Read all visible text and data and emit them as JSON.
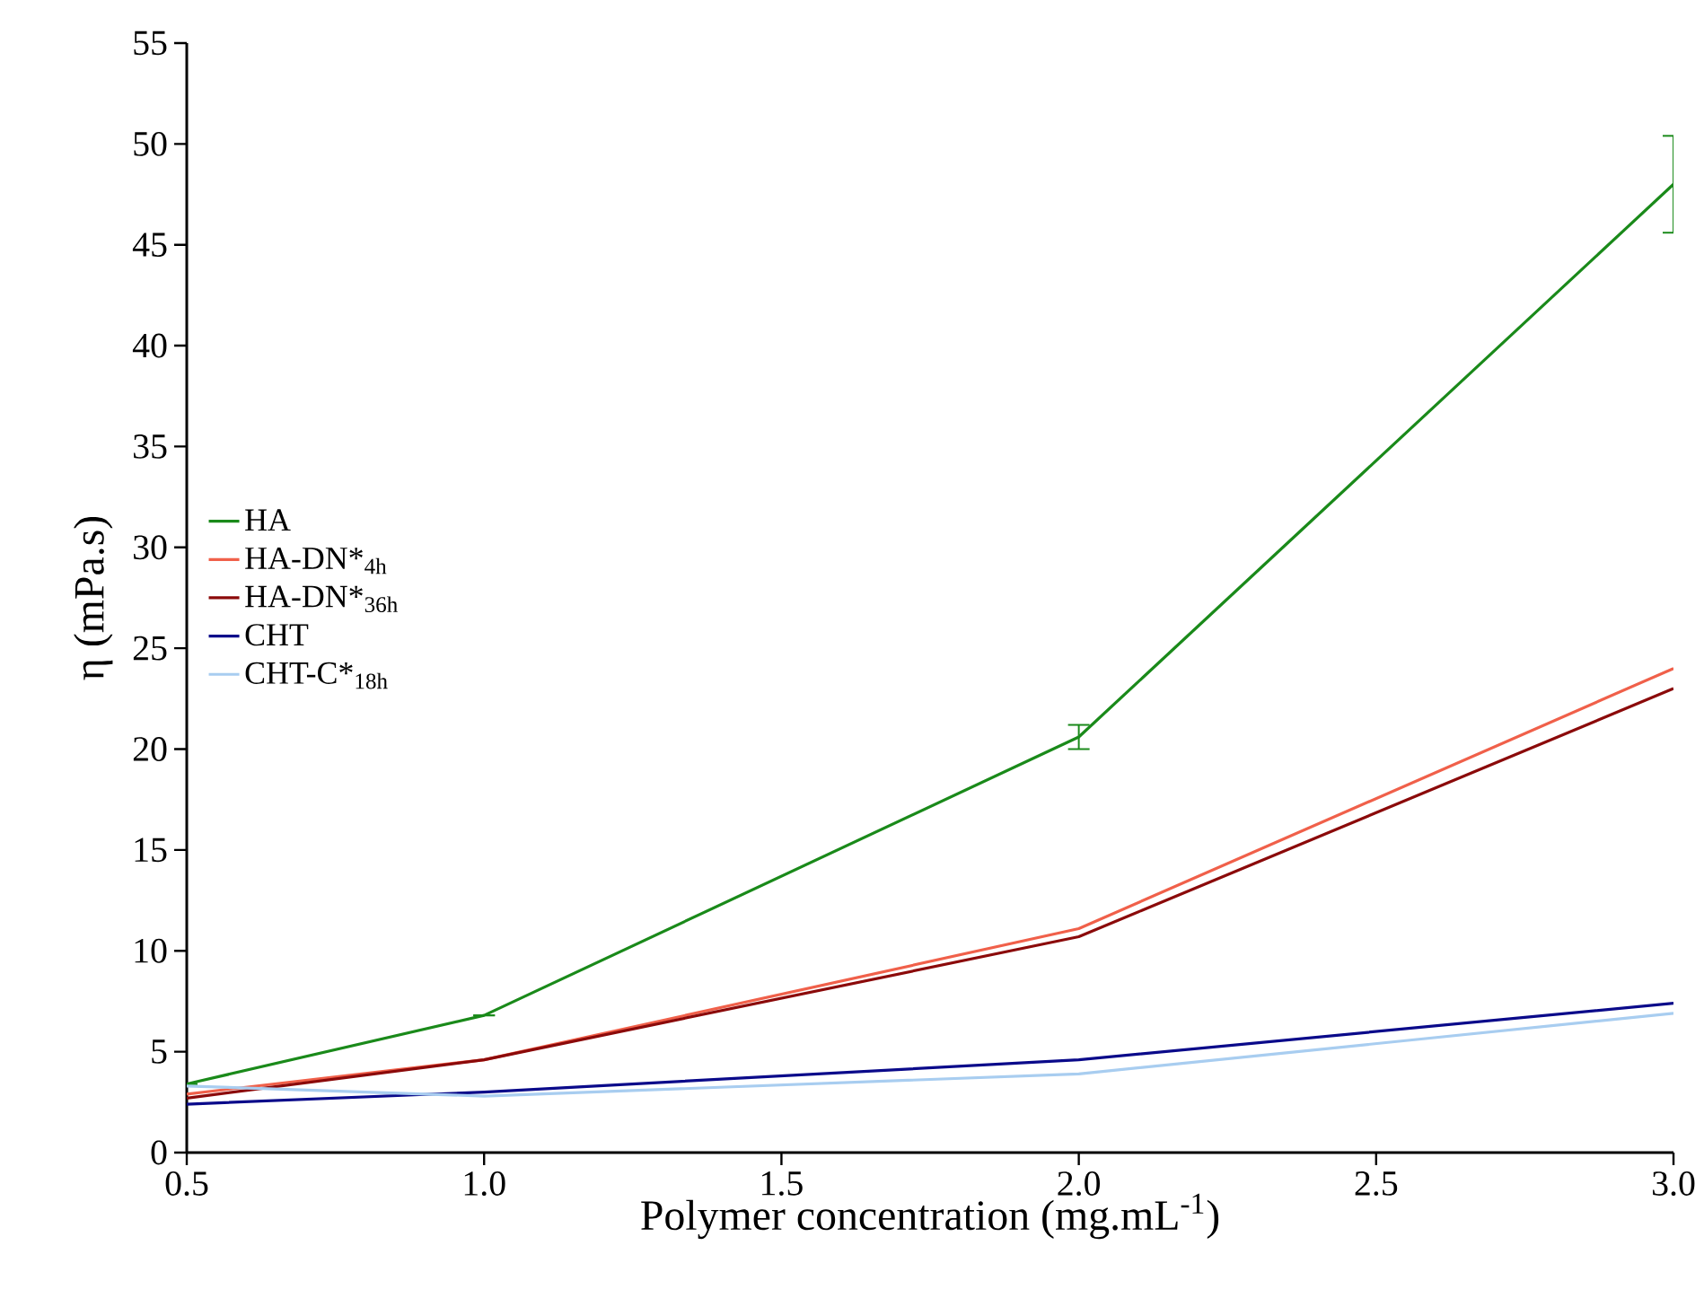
{
  "chart_data": {
    "type": "line",
    "xlabel": "Polymer concentration (mg.mL$^{-1}$)",
    "ylabel": "η (mPa.s)",
    "x": [
      0.5,
      1.0,
      2.0,
      3.0
    ],
    "series": [
      {
        "name": "HA",
        "color": "#1a8a1a",
        "values": [
          3.4,
          6.8,
          20.6,
          48.0
        ],
        "errors": [
          null,
          null,
          0.6,
          2.4
        ]
      },
      {
        "name": "HA-DN*$_{4h}$",
        "color": "#f0604a",
        "values": [
          2.9,
          4.6,
          11.1,
          24.0
        ]
      },
      {
        "name": "HA-DN*$_{36h}$",
        "color": "#8b0a0a",
        "values": [
          2.7,
          4.6,
          10.7,
          23.0
        ]
      },
      {
        "name": "CHT",
        "color": "#0a0a8a",
        "values": [
          2.4,
          3.0,
          4.6,
          7.4
        ]
      },
      {
        "name": "CHT-C*$_{18h}$",
        "color": "#a8cdf0",
        "values": [
          3.3,
          2.8,
          3.9,
          6.9
        ]
      }
    ],
    "xlim": [
      0.5,
      3.0
    ],
    "xticks": [
      0.5,
      {
        "value": 1.0,
        "label": "1.0"
      },
      1.5,
      {
        "value": 2.0,
        "label": "2.0"
      },
      2.5,
      {
        "value": 3.0,
        "label": "3.0"
      }
    ],
    "ylim": [
      0,
      55
    ],
    "yticks": [
      0,
      5,
      10,
      15,
      20,
      25,
      30,
      35,
      40,
      45,
      50,
      55
    ],
    "grid": false,
    "legend": "left",
    "marker": "none",
    "line_style": "solid"
  }
}
